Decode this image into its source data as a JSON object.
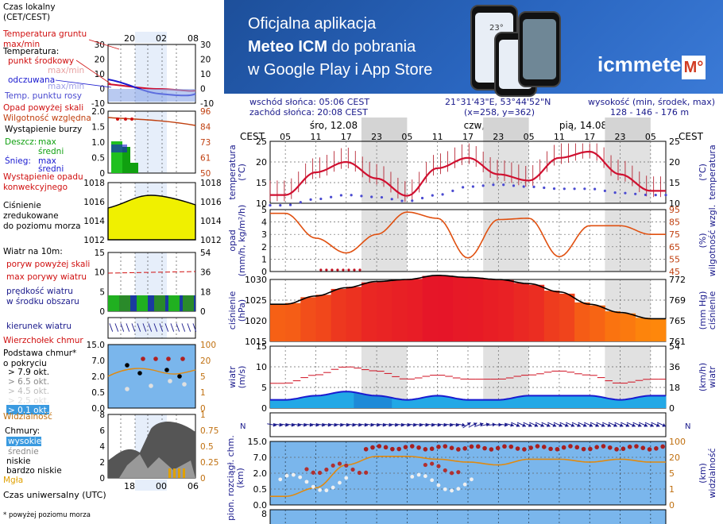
{
  "banner": {
    "line1": "Oficjalna aplikacja",
    "line2_bold": "Meteo ICM",
    "line2_rest": " do pobrania",
    "line3": "w Google Play i App Store",
    "logo": "icmmeteo",
    "logo_mark": "M°",
    "phone_temp": "23°"
  },
  "info": {
    "sunrise": "wschód słońca: 05:06 CEST",
    "sunset": "zachód słońca: 20:08 CEST",
    "coords": "21°31'43\"E, 53°44'52\"N",
    "grid": "(x=258,  y=362)",
    "height_label": "wysokość (min, środek, max)",
    "height_values": "128 - 146 - 176 m"
  },
  "days": [
    "śro, 12.08",
    "czw, 13.08",
    "pią, 14.08"
  ],
  "cest_label": "CEST",
  "hours": [
    "05",
    "11",
    "17",
    "23",
    "05",
    "11",
    "17",
    "23",
    "05",
    "11",
    "17",
    "23",
    "05"
  ],
  "legend": {
    "time_zone": "Czas lokalny\n(CET/CEST)",
    "top_hours": [
      "20",
      "02",
      "08"
    ],
    "ground_temp": "Temperatura gruntu\nmax/min",
    "temperature": "Temperatura:",
    "mid_point": "punkt środkowy",
    "max_min": "max/min",
    "felt": "odczuwana",
    "felt_mm": "max/min",
    "dew": "Temp. punktu rosy",
    "precip_above": "Opad powyżej skali",
    "humidity": "Wilgotność względna",
    "storm": "Wystąpienie burzy",
    "rain": "Deszcz:",
    "rain_max": "max",
    "rain_mean": "średni",
    "snow": "Śnieg:",
    "snow_max": "max",
    "snow_mean": "średni",
    "conv": "Wystąpienie opadu\nkonwekcyjnego",
    "pressure": "Ciśnienie\nzredukowane\ndo poziomu morza",
    "wind_title": "Wiatr na 10m:",
    "gust_above": "poryw powyżej skali",
    "gust_max": "max porywy wiatru",
    "wind_speed": "prędkość wiatru\nw środku obszaru",
    "wind_dir": "kierunek wiatru",
    "cloud_top": "Wierzchołek chmur",
    "cloud_base": "Podstawa chmur*\no pokryciu",
    "okt": [
      "> 7.9 okt.",
      "> 6.5 okt.",
      "> 4.5 okt.",
      "> 2.5 okt.",
      "> 0.1 okt."
    ],
    "visibility": "Widzialność",
    "clouds": "Chmury:",
    "cloud_levels": [
      "wysokie",
      "średnie",
      "niskie",
      "bardzo niskie"
    ],
    "fog": "Mgła",
    "utc": "Czas uniwersalny (UTC)",
    "utc_hours": [
      "18",
      "00",
      "06"
    ],
    "footnote": "* powyżej poziomu morza"
  },
  "panel_labels": {
    "temp_l": "temperatura\n(°C)",
    "temp_r": "(°C)\ntemperatura",
    "precip_l": "opad\n(mm/h, kg/m²/h)",
    "precip_r": "(%)\nwilgotność wzgl.",
    "press_l": "ciśnienie\n(hPa)",
    "press_r": "(mm Hg)\nciśnienie",
    "wind_l": "wiatr\n(m/s)",
    "wind_r": "(km/h)\nwiatr",
    "cloud_l": "pion. rozciągł. chm.\n(km)",
    "cloud_r": "(km)\nwidzialność"
  },
  "colors": {
    "temp": "#d01030",
    "dew": "#4a4ad0",
    "humidity": "#e05010",
    "pressure_low": "#ff8c00",
    "pressure_high": "#e01020",
    "wind": "#1a1ad0",
    "gust": "#d01020",
    "cloud_bg": "#7ab6ec",
    "night": "#d4d4d4"
  },
  "chart_data": [
    {
      "type": "line",
      "name": "temperature",
      "x_hours": [
        5,
        11,
        17,
        23,
        29,
        35,
        41,
        47,
        53,
        59,
        65,
        71,
        77
      ],
      "series": [
        {
          "name": "temperature",
          "values": [
            12.0,
            17.5,
            20.0,
            16.0,
            11.8,
            18.5,
            21.0,
            17.0,
            15.5,
            21.0,
            22.5,
            17.0,
            13.0
          ]
        },
        {
          "name": "dew point",
          "values": [
            9.5,
            11.0,
            12.0,
            11.5,
            10.5,
            12.0,
            14.0,
            14.5,
            14.0,
            13.5,
            13.5,
            12.5,
            12.0
          ]
        }
      ],
      "ylim": [
        10,
        25
      ],
      "y_ticks": [
        10,
        15,
        20,
        25
      ]
    },
    {
      "type": "line",
      "name": "precipitation-humidity",
      "x_hours": [
        5,
        11,
        17,
        23,
        29,
        35,
        41,
        47,
        53,
        59,
        65,
        71,
        77
      ],
      "series": [
        {
          "name": "humidity",
          "values": [
            92,
            72,
            60,
            75,
            93,
            88,
            56,
            87,
            88,
            57,
            82,
            82,
            75
          ]
        }
      ],
      "ylim_left": [
        0,
        5
      ],
      "ylim_right": [
        45,
        95
      ],
      "y_ticks_left": [
        0,
        1,
        2,
        3,
        4,
        5
      ],
      "y_ticks_right": [
        45,
        55,
        65,
        75,
        85,
        95
      ]
    },
    {
      "type": "area",
      "name": "pressure",
      "x_hours": [
        5,
        11,
        17,
        23,
        29,
        35,
        41,
        47,
        53,
        59,
        65,
        71,
        77
      ],
      "values": [
        1024,
        1026,
        1028,
        1029.5,
        1030,
        1031,
        1030.5,
        1030,
        1029,
        1027,
        1024,
        1022,
        1020.5
      ],
      "ylim": [
        1015,
        1030
      ],
      "y_ticks_left": [
        1015,
        1020,
        1025,
        1030
      ],
      "y_ticks_right": [
        761,
        765,
        769,
        772
      ]
    },
    {
      "type": "line",
      "name": "wind",
      "x_hours": [
        5,
        11,
        17,
        23,
        29,
        35,
        41,
        47,
        53,
        59,
        65,
        71,
        77
      ],
      "series": [
        {
          "name": "gusts",
          "values": [
            6,
            8,
            10,
            9,
            7,
            8,
            7,
            7,
            8,
            9,
            8,
            6,
            7
          ]
        },
        {
          "name": "speed",
          "values": [
            2,
            3,
            4,
            3,
            2,
            3,
            2,
            2,
            3,
            3,
            3,
            2,
            3
          ]
        }
      ],
      "ylim": [
        0,
        15
      ],
      "y_ticks_left": [
        0,
        5,
        10,
        15
      ],
      "y_ticks_right": [
        0,
        18,
        36,
        54
      ]
    },
    {
      "type": "scatter",
      "name": "clouds",
      "ylim": [
        0,
        15
      ],
      "y_ticks_left": [
        "0.0",
        "0.5",
        "2.0",
        "7.0",
        "15.0"
      ],
      "y_ticks_right": [
        "0",
        "1",
        "5",
        "20",
        "100"
      ]
    }
  ]
}
